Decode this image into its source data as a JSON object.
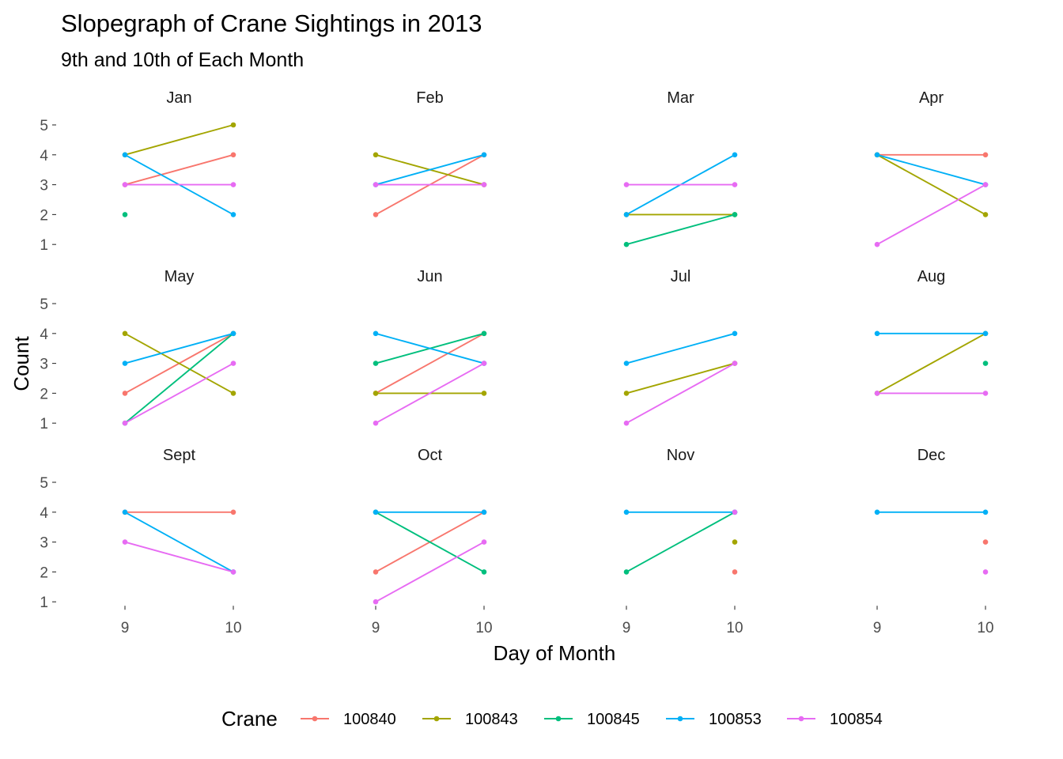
{
  "chart_data": {
    "type": "line",
    "title": "Slopegraph of Crane Sightings in 2013",
    "subtitle": "9th and 10th of Each Month",
    "xlabel": "Day of Month",
    "ylabel": "Count",
    "x": [
      9,
      10
    ],
    "x_ticks": [
      "9",
      "10"
    ],
    "y_ticks": [
      "1",
      "2",
      "3",
      "4",
      "5"
    ],
    "ylim": [
      1,
      5
    ],
    "grid": false,
    "legend_position": "bottom",
    "legend_title": "Crane",
    "series": [
      {
        "name": "100840",
        "color": "#F8766D"
      },
      {
        "name": "100843",
        "color": "#A3A500"
      },
      {
        "name": "100845",
        "color": "#00BF7D"
      },
      {
        "name": "100853",
        "color": "#00B0F6"
      },
      {
        "name": "100854",
        "color": "#E76BF3"
      }
    ],
    "panels": [
      {
        "month": "Jan",
        "values": {
          "100840": [
            3,
            4
          ],
          "100843": [
            4,
            5
          ],
          "100845": [
            2,
            null
          ],
          "100853": [
            4,
            2
          ],
          "100854": [
            3,
            3
          ]
        }
      },
      {
        "month": "Feb",
        "values": {
          "100840": [
            2,
            4
          ],
          "100843": [
            4,
            3
          ],
          "100853": [
            3,
            4
          ],
          "100854": [
            3,
            3
          ]
        }
      },
      {
        "month": "Mar",
        "values": {
          "100843": [
            2,
            2
          ],
          "100845": [
            1,
            2
          ],
          "100853": [
            2,
            4
          ],
          "100854": [
            3,
            3
          ]
        }
      },
      {
        "month": "Apr",
        "values": {
          "100840": [
            4,
            4
          ],
          "100843": [
            4,
            2
          ],
          "100853": [
            4,
            3
          ],
          "100854": [
            1,
            3
          ]
        }
      },
      {
        "month": "May",
        "values": {
          "100840": [
            2,
            4
          ],
          "100843": [
            4,
            2
          ],
          "100845": [
            1,
            4
          ],
          "100853": [
            3,
            4
          ],
          "100854": [
            1,
            3
          ]
        }
      },
      {
        "month": "Jun",
        "values": {
          "100840": [
            2,
            4
          ],
          "100843": [
            2,
            2
          ],
          "100845": [
            3,
            4
          ],
          "100853": [
            4,
            3
          ],
          "100854": [
            1,
            3
          ]
        }
      },
      {
        "month": "Jul",
        "values": {
          "100843": [
            2,
            3
          ],
          "100853": [
            3,
            4
          ],
          "100854": [
            1,
            3
          ]
        }
      },
      {
        "month": "Aug",
        "values": {
          "100843": [
            2,
            4
          ],
          "100845": [
            null,
            3
          ],
          "100853": [
            4,
            4
          ],
          "100854": [
            2,
            2
          ]
        }
      },
      {
        "month": "Sept",
        "values": {
          "100840": [
            4,
            4
          ],
          "100853": [
            4,
            2
          ],
          "100854": [
            3,
            2
          ]
        }
      },
      {
        "month": "Oct",
        "values": {
          "100840": [
            2,
            4
          ],
          "100845": [
            4,
            2
          ],
          "100853": [
            4,
            4
          ],
          "100854": [
            1,
            3
          ]
        }
      },
      {
        "month": "Nov",
        "values": {
          "100840": [
            null,
            2
          ],
          "100843": [
            null,
            3
          ],
          "100845": [
            2,
            4
          ],
          "100853": [
            4,
            4
          ],
          "100854": [
            null,
            4
          ]
        }
      },
      {
        "month": "Dec",
        "values": {
          "100840": [
            null,
            3
          ],
          "100853": [
            4,
            4
          ],
          "100854": [
            null,
            2
          ]
        }
      }
    ]
  }
}
